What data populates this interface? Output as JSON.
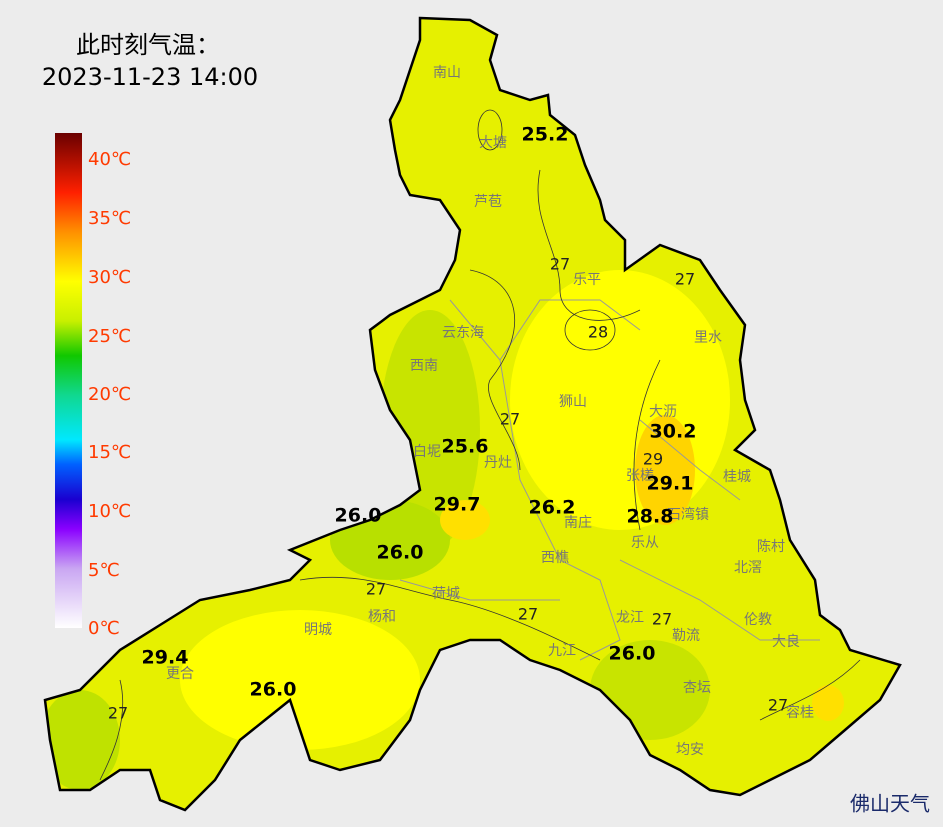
{
  "title": {
    "line1": "此时刻气温：",
    "line2": "2023-11-23 14:00"
  },
  "legend": {
    "labels": [
      "40℃",
      "35℃",
      "30℃",
      "25℃",
      "20℃",
      "15℃",
      "10℃",
      "5℃",
      "0℃"
    ]
  },
  "places": [
    "南山",
    "大塘",
    "芦苞",
    "乐平",
    "云东海",
    "里水",
    "西南",
    "狮山",
    "大沥",
    "白坭",
    "丹灶",
    "桂城",
    "张槎",
    "南庄",
    "石湾镇",
    "乐从",
    "陈村",
    "西樵",
    "北滘",
    "荷城",
    "杨和",
    "明城",
    "龙江",
    "勒流",
    "伦教",
    "大良",
    "九江",
    "更合",
    "杏坛",
    "容桂",
    "均安"
  ],
  "stations": [
    "25.2",
    "25.6",
    "30.2",
    "29.1",
    "29.7",
    "26.2",
    "28.8",
    "26.0",
    "26.0",
    "29.4",
    "26.0",
    "26.0"
  ],
  "contour_labels": [
    "27",
    "28",
    "27",
    "27",
    "29",
    "27",
    "27",
    "27",
    "27",
    "27"
  ],
  "watermark": "佛山天气"
}
